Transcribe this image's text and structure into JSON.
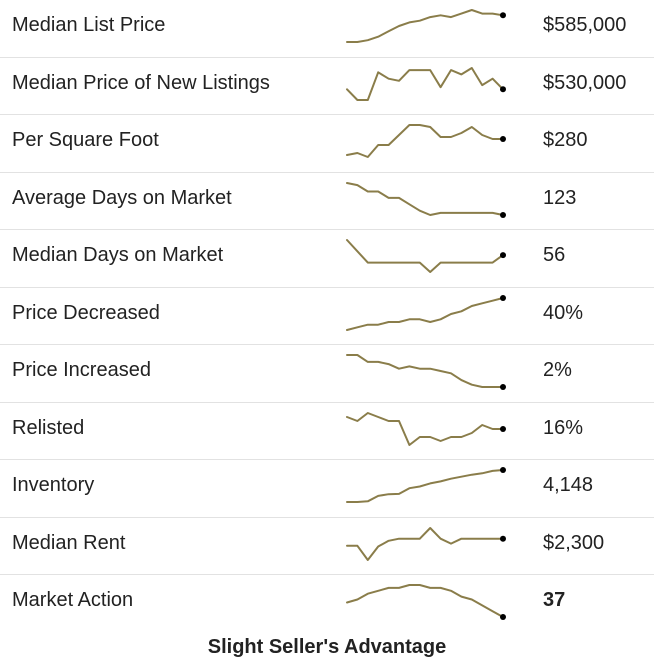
{
  "colors": {
    "sparkline": "#8a7d4a",
    "endpoint": "#000000",
    "divider": "#e2e2e2"
  },
  "rows": [
    {
      "label": "Median List Price",
      "value": "$585,000",
      "trend": [
        48,
        48,
        49,
        51,
        54,
        57,
        59,
        60,
        62,
        63,
        62,
        64,
        66,
        64,
        64,
        63
      ]
    },
    {
      "label": "Median Price of New Listings",
      "value": "$530,000",
      "trend": [
        55,
        50,
        50,
        63,
        60,
        59,
        64,
        64,
        64,
        56,
        64,
        62,
        65,
        57,
        60,
        55
      ]
    },
    {
      "label": "Per Square Foot",
      "value": "$280",
      "trend": [
        52,
        53,
        51,
        57,
        57,
        62,
        67,
        67,
        66,
        61,
        61,
        63,
        66,
        62,
        60,
        60
      ]
    },
    {
      "label": "Average Days on Market",
      "value": "123",
      "trend": [
        65,
        64,
        61,
        61,
        58,
        58,
        55,
        52,
        50,
        51,
        51,
        51,
        51,
        51,
        51,
        50
      ]
    },
    {
      "label": "Median Days on Market",
      "value": "56",
      "trend": [
        70,
        64,
        58,
        58,
        58,
        58,
        58,
        58,
        53,
        58,
        58,
        58,
        58,
        58,
        58,
        62
      ]
    },
    {
      "label": "Price Decreased",
      "value": "40%",
      "trend": [
        25,
        26,
        27,
        27,
        28,
        28,
        29,
        29,
        28,
        29,
        31,
        32,
        34,
        35,
        36,
        37
      ]
    },
    {
      "label": "Price Increased",
      "value": "2%",
      "trend": [
        40,
        40,
        37,
        37,
        36,
        34,
        35,
        34,
        34,
        33,
        32,
        29,
        27,
        26,
        26,
        26
      ]
    },
    {
      "label": "Relisted",
      "value": "16%",
      "trend": [
        20,
        19,
        21,
        20,
        19,
        19,
        13,
        15,
        15,
        14,
        15,
        15,
        16,
        18,
        17,
        17
      ]
    },
    {
      "label": "Inventory",
      "value": "4,148",
      "trend": [
        3200,
        3200,
        3220,
        3380,
        3430,
        3440,
        3610,
        3660,
        3750,
        3810,
        3890,
        3950,
        4010,
        4050,
        4120,
        4148
      ]
    },
    {
      "label": "Median Rent",
      "value": "$2,300",
      "trend": [
        2200,
        2200,
        2000,
        2190,
        2270,
        2300,
        2300,
        2300,
        2450,
        2300,
        2230,
        2300,
        2300,
        2300,
        2300,
        2300
      ]
    },
    {
      "label": "Market Action",
      "value": "37",
      "trend": [
        41,
        42,
        44,
        45,
        46,
        46,
        47,
        47,
        46,
        46,
        45,
        43,
        42,
        40,
        38,
        36
      ]
    }
  ],
  "footer": {
    "status": "Slight Seller's Advantage"
  }
}
